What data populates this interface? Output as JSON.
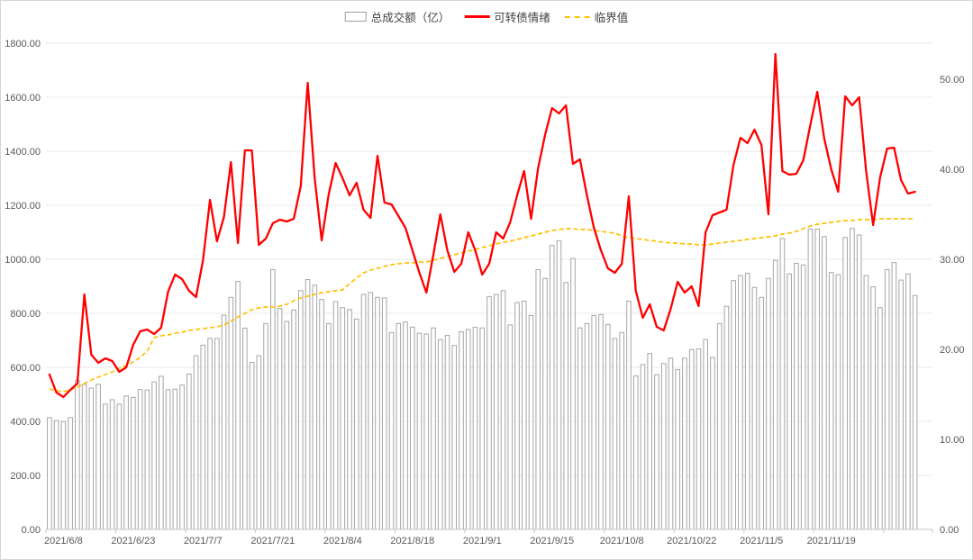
{
  "colors": {
    "bar_fill": "#ffffff",
    "bar_stroke": "#a6a6a6",
    "sentiment_line": "#ff0000",
    "threshold_line": "#ffc000",
    "gridline": "#e8e8e8",
    "axis_line": "#c6c6c6",
    "tick_text": "#595959",
    "canvas_border": "#d6d6d6"
  },
  "chart_data": {
    "type": "combo-bar-line",
    "grid": true,
    "legend_position": "top-center",
    "empty_trailing_slots": 2,
    "left_axis": {
      "min": 0,
      "max": 1800,
      "step": 200,
      "tick_labels": [
        "0.00",
        "200.00",
        "400.00",
        "600.00",
        "800.00",
        "1000.00",
        "1200.00",
        "1400.00",
        "1600.00",
        "1800.00"
      ]
    },
    "right_axis": {
      "min": 0,
      "max": 54,
      "step": 10,
      "tick_labels": [
        "0.00",
        "10.00",
        "20.00",
        "30.00",
        "40.00",
        "50.00"
      ]
    },
    "x_tick_labels": [
      "2021/6/8",
      "2021/6/23",
      "2021/7/7",
      "2021/7/21",
      "2021/8/4",
      "2021/8/18",
      "2021/9/1",
      "2021/9/15",
      "2021/10/8",
      "2021/10/22",
      "2021/11/5",
      "2021/11/19"
    ],
    "x_label_start_index": 2,
    "x_label_every": 10,
    "categories": [
      "2021/6/4",
      "2021/6/7",
      "2021/6/8",
      "2021/6/9",
      "2021/6/10",
      "2021/6/11",
      "2021/6/15",
      "2021/6/16",
      "2021/6/17",
      "2021/6/18",
      "2021/6/21",
      "2021/6/22",
      "2021/6/23",
      "2021/6/24",
      "2021/6/25",
      "2021/6/28",
      "2021/6/29",
      "2021/6/30",
      "2021/7/1",
      "2021/7/2",
      "2021/7/5",
      "2021/7/6",
      "2021/7/7",
      "2021/7/8",
      "2021/7/9",
      "2021/7/12",
      "2021/7/13",
      "2021/7/14",
      "2021/7/15",
      "2021/7/16",
      "2021/7/19",
      "2021/7/20",
      "2021/7/21",
      "2021/7/22",
      "2021/7/23",
      "2021/7/26",
      "2021/7/27",
      "2021/7/28",
      "2021/7/29",
      "2021/7/30",
      "2021/8/2",
      "2021/8/3",
      "2021/8/4",
      "2021/8/5",
      "2021/8/6",
      "2021/8/9",
      "2021/8/10",
      "2021/8/11",
      "2021/8/12",
      "2021/8/13",
      "2021/8/16",
      "2021/8/17",
      "2021/8/18",
      "2021/8/19",
      "2021/8/20",
      "2021/8/23",
      "2021/8/24",
      "2021/8/25",
      "2021/8/26",
      "2021/8/27",
      "2021/8/30",
      "2021/8/31",
      "2021/9/1",
      "2021/9/2",
      "2021/9/3",
      "2021/9/6",
      "2021/9/7",
      "2021/9/8",
      "2021/9/9",
      "2021/9/10",
      "2021/9/13",
      "2021/9/14",
      "2021/9/15",
      "2021/9/16",
      "2021/9/17",
      "2021/9/22",
      "2021/9/23",
      "2021/9/24",
      "2021/9/27",
      "2021/9/28",
      "2021/9/29",
      "2021/9/30",
      "2021/10/8",
      "2021/10/11",
      "2021/10/12",
      "2021/10/13",
      "2021/10/14",
      "2021/10/15",
      "2021/10/18",
      "2021/10/19",
      "2021/10/20",
      "2021/10/21",
      "2021/10/22",
      "2021/10/25",
      "2021/10/26",
      "2021/10/27",
      "2021/10/28",
      "2021/10/29",
      "2021/11/1",
      "2021/11/2",
      "2021/11/3",
      "2021/11/4",
      "2021/11/5",
      "2021/11/8",
      "2021/11/9",
      "2021/11/10",
      "2021/11/11",
      "2021/11/12",
      "2021/11/15",
      "2021/11/16",
      "2021/11/17",
      "2021/11/18",
      "2021/11/19",
      "2021/11/22",
      "2021/11/23",
      "2021/11/24",
      "2021/11/25",
      "2021/11/26",
      "2021/11/29",
      "2021/11/30",
      "2021/12/1",
      "2021/12/2",
      "2021/12/3",
      "2021/12/6",
      "2021/12/7"
    ],
    "series": [
      {
        "name": "总成交额（亿）",
        "type": "bar",
        "axis": "left",
        "values": [
          414,
          403,
          399,
          414,
          551,
          537,
          523,
          537,
          464,
          480,
          464,
          494,
          489,
          518,
          516,
          546,
          567,
          517,
          519,
          534,
          575,
          643,
          682,
          707,
          707,
          793,
          859,
          918,
          745,
          618,
          643,
          762,
          962,
          818,
          770,
          812,
          884,
          925,
          904,
          851,
          762,
          843,
          821,
          814,
          779,
          870,
          877,
          859,
          857,
          729,
          762,
          768,
          749,
          726,
          723,
          746,
          703,
          718,
          681,
          732,
          740,
          748,
          746,
          862,
          870,
          884,
          757,
          840,
          845,
          792,
          962,
          929,
          1051,
          1068,
          914,
          1003,
          746,
          762,
          792,
          795,
          759,
          707,
          729,
          845,
          568,
          610,
          651,
          573,
          614,
          634,
          592,
          634,
          666,
          668,
          703,
          637,
          762,
          826,
          921,
          940,
          948,
          896,
          859,
          929,
          996,
          1077,
          946,
          985,
          979,
          1112,
          1112,
          1084,
          951,
          943,
          1081,
          1114,
          1090,
          940,
          898,
          821,
          962,
          988,
          923,
          946,
          866
        ]
      },
      {
        "name": "可转债情绪",
        "type": "line",
        "style": "solid",
        "axis": "right",
        "values": [
          17.2,
          15.2,
          14.7,
          15.5,
          16.2,
          26.1,
          19.4,
          18.5,
          19.0,
          18.7,
          17.5,
          18.0,
          20.5,
          22.0,
          22.2,
          21.7,
          22.4,
          26.4,
          28.3,
          27.8,
          26.5,
          25.8,
          29.9,
          36.6,
          32.0,
          34.7,
          40.8,
          31.8,
          42.1,
          42.1,
          31.6,
          32.3,
          34.0,
          34.4,
          34.2,
          34.5,
          38.1,
          49.6,
          39.0,
          32.1,
          37.2,
          40.7,
          39.0,
          37.1,
          38.5,
          35.5,
          34.6,
          41.5,
          36.3,
          36.1,
          34.8,
          33.5,
          31.0,
          28.5,
          26.3,
          30.5,
          35.0,
          31.0,
          28.6,
          29.5,
          33.0,
          31.0,
          28.3,
          29.5,
          33.0,
          32.3,
          34.1,
          37.1,
          39.8,
          34.5,
          40.1,
          43.8,
          46.8,
          46.2,
          47.1,
          40.6,
          41.1,
          37.1,
          33.5,
          31.0,
          29.0,
          28.5,
          29.5,
          37.0,
          26.5,
          23.5,
          25.0,
          22.5,
          22.1,
          24.5,
          27.5,
          26.3,
          27.0,
          24.8,
          33.0,
          34.9,
          35.2,
          35.5,
          40.5,
          43.5,
          42.9,
          44.4,
          42.7,
          35.0,
          52.8,
          39.8,
          39.4,
          39.5,
          41.0,
          44.9,
          48.6,
          43.4,
          40.0,
          37.5,
          48.1,
          47.1,
          48.0,
          39.8,
          33.8,
          39.1,
          42.3,
          42.4,
          38.8,
          37.3,
          37.5
        ]
      },
      {
        "name": "临界值",
        "type": "line",
        "style": "dashed",
        "axis": "right",
        "values": [
          15.6,
          15.4,
          15.3,
          15.5,
          15.8,
          16.2,
          16.6,
          16.9,
          17.2,
          17.5,
          17.9,
          18.2,
          18.6,
          19.1,
          19.8,
          21.3,
          21.5,
          21.6,
          21.8,
          21.9,
          22.1,
          22.2,
          22.3,
          22.4,
          22.5,
          22.7,
          23.1,
          23.6,
          24.0,
          24.4,
          24.6,
          24.7,
          24.7,
          24.8,
          25.0,
          25.4,
          25.7,
          25.9,
          26.1,
          26.3,
          26.4,
          26.5,
          26.6,
          27.3,
          27.9,
          28.5,
          28.8,
          29.0,
          29.2,
          29.4,
          29.5,
          29.6,
          29.6,
          29.7,
          29.7,
          29.9,
          30.1,
          30.3,
          30.5,
          30.7,
          30.9,
          31.1,
          31.3,
          31.5,
          31.7,
          31.9,
          32.0,
          32.2,
          32.4,
          32.6,
          32.8,
          33.0,
          33.2,
          33.3,
          33.4,
          33.4,
          33.3,
          33.3,
          33.2,
          33.1,
          33.0,
          32.9,
          32.6,
          32.4,
          32.3,
          32.2,
          32.1,
          32.0,
          31.9,
          31.8,
          31.8,
          31.7,
          31.7,
          31.6,
          31.6,
          31.7,
          31.8,
          31.9,
          32.0,
          32.1,
          32.2,
          32.3,
          32.4,
          32.5,
          32.6,
          32.8,
          32.9,
          33.1,
          33.4,
          33.7,
          33.9,
          34.0,
          34.1,
          34.2,
          34.3,
          34.3,
          34.4,
          34.4,
          34.4,
          34.5,
          34.5,
          34.5,
          34.5,
          34.5,
          34.5
        ]
      }
    ]
  }
}
